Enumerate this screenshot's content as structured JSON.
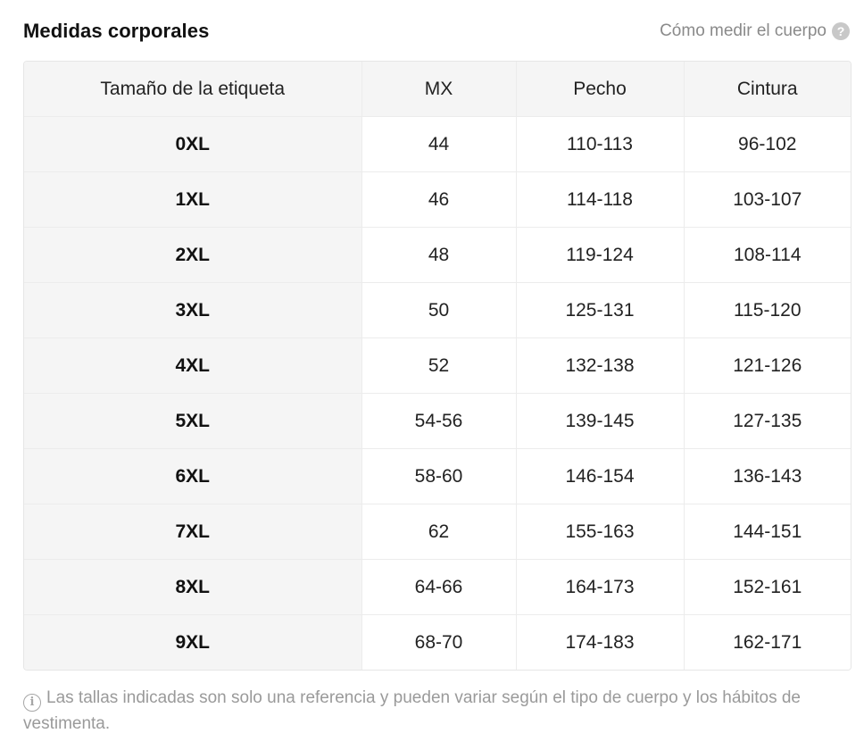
{
  "header": {
    "title": "Medidas corporales",
    "how_to_measure": "Cómo medir el cuerpo",
    "help_icon": "question-circle-icon"
  },
  "table": {
    "columns": [
      "Tamaño de la etiqueta",
      "MX",
      "Pecho",
      "Cintura"
    ],
    "rows": [
      [
        "0XL",
        "44",
        "110-113",
        "96-102"
      ],
      [
        "1XL",
        "46",
        "114-118",
        "103-107"
      ],
      [
        "2XL",
        "48",
        "119-124",
        "108-114"
      ],
      [
        "3XL",
        "50",
        "125-131",
        "115-120"
      ],
      [
        "4XL",
        "52",
        "132-138",
        "121-126"
      ],
      [
        "5XL",
        "54-56",
        "139-145",
        "127-135"
      ],
      [
        "6XL",
        "58-60",
        "146-154",
        "136-143"
      ],
      [
        "7XL",
        "62",
        "155-163",
        "144-151"
      ],
      [
        "8XL",
        "64-66",
        "164-173",
        "152-161"
      ],
      [
        "9XL",
        "68-70",
        "174-183",
        "162-171"
      ]
    ]
  },
  "note": {
    "icon": "info-circle-icon",
    "text": "Las tallas indicadas son solo una referencia y pueden variar según el tipo de cuerpo y los hábitos de vestimenta."
  },
  "colors": {
    "header_bg": "#f5f5f5",
    "border": "#ececec",
    "muted_text": "#8a8a8a"
  }
}
